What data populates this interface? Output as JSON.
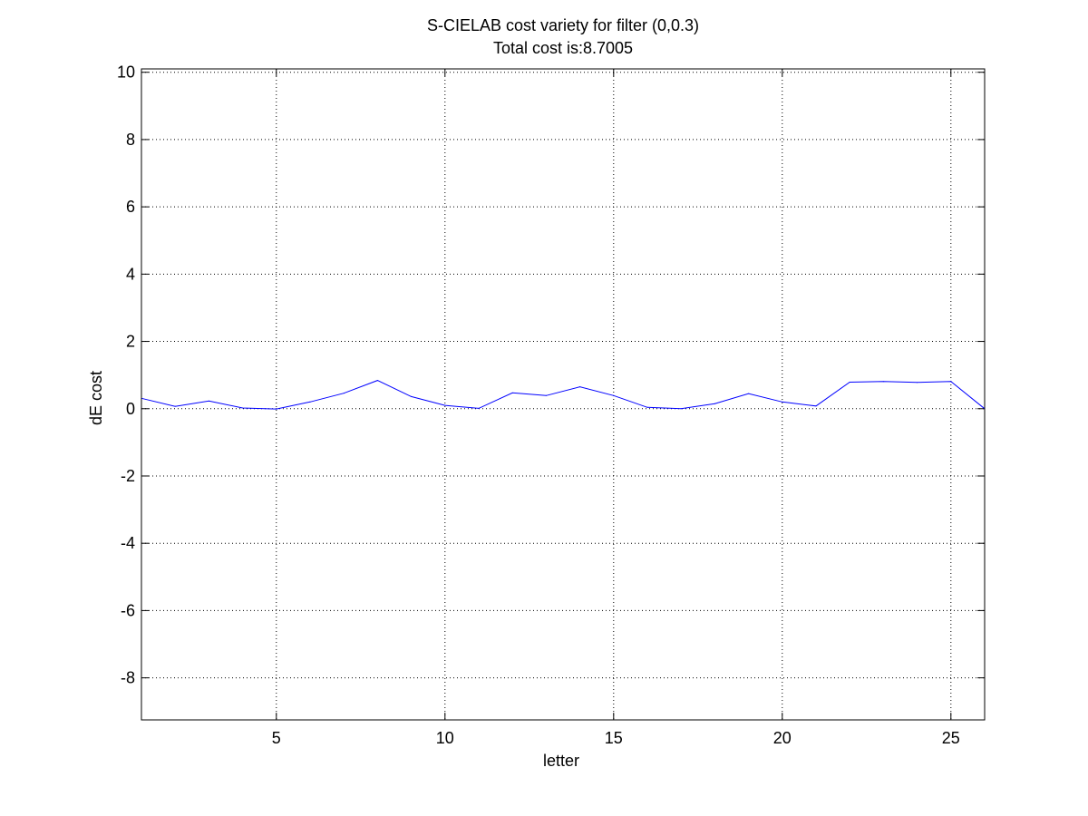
{
  "chart_data": {
    "type": "line",
    "title": [
      "S-CIELAB cost variety for filter (0,0.3)",
      "Total cost is:8.7005"
    ],
    "xlabel": "letter",
    "ylabel": "dE cost",
    "xlim": [
      1,
      26
    ],
    "ylim": [
      -9.25,
      10.1
    ],
    "xticks": [
      5,
      10,
      15,
      20,
      25
    ],
    "yticks": [
      -8,
      -6,
      -4,
      -2,
      0,
      2,
      4,
      6,
      8,
      10
    ],
    "grid": true,
    "series": [
      {
        "color": "#0000ff",
        "x": [
          1,
          2,
          3,
          4,
          5,
          6,
          7,
          8,
          9,
          10,
          11,
          12,
          13,
          14,
          15,
          16,
          17,
          18,
          19,
          20,
          21,
          22,
          23,
          24,
          25,
          26
        ],
        "y": [
          0.31,
          0.07,
          0.23,
          0.02,
          -0.01,
          0.2,
          0.46,
          0.84,
          0.36,
          0.1,
          0.01,
          0.47,
          0.39,
          0.65,
          0.39,
          0.04,
          0.0,
          0.15,
          0.45,
          0.2,
          0.08,
          0.79,
          0.81,
          0.78,
          0.81,
          0.0
        ]
      }
    ]
  }
}
